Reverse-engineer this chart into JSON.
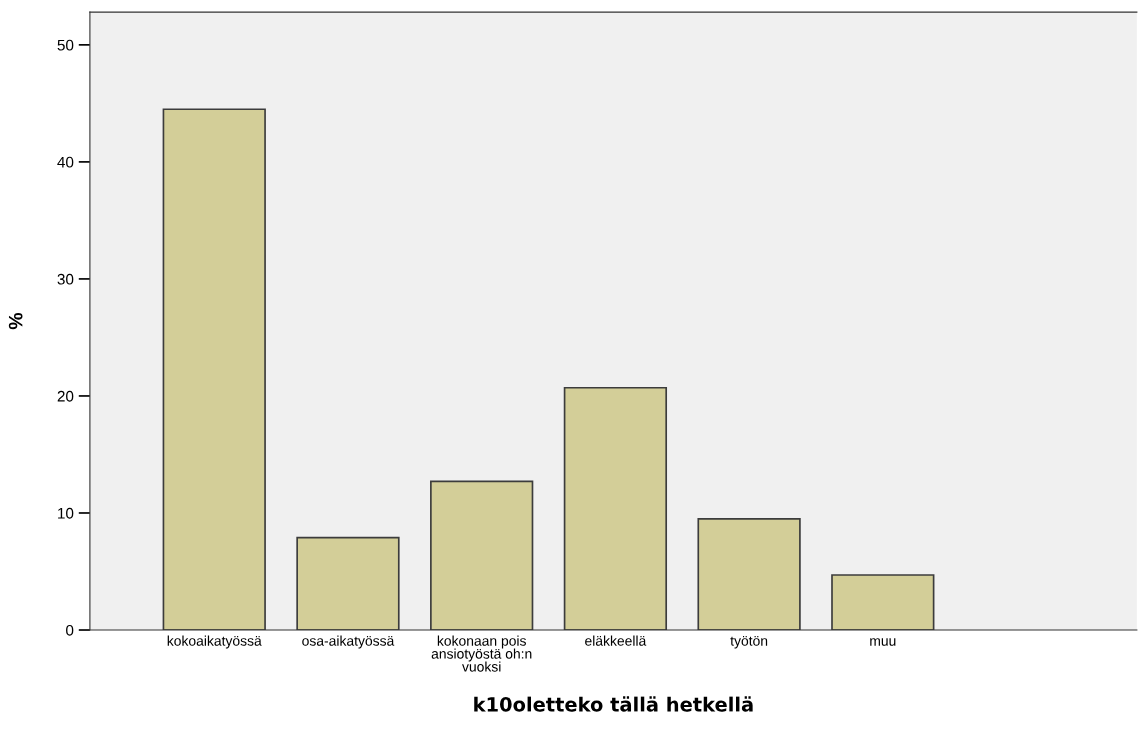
{
  "chart_data": {
    "type": "bar",
    "xlabel": "k10oletteko tällä hetkellä",
    "ylabel": "%",
    "categories": [
      "kokoaikatyössä",
      "osa-aikatyössä",
      "kokonaan pois\nansiotyöstä oh:n\nvuoksi",
      "eläkkeellä",
      "työtön",
      "muu"
    ],
    "values": [
      44.5,
      7.9,
      12.7,
      20.7,
      9.5,
      4.7
    ],
    "color": "#d3ce98",
    "ylim": [
      0,
      52.8
    ],
    "yticks": [
      0,
      10,
      20,
      30,
      40,
      50
    ],
    "grid": false,
    "legend": false
  }
}
